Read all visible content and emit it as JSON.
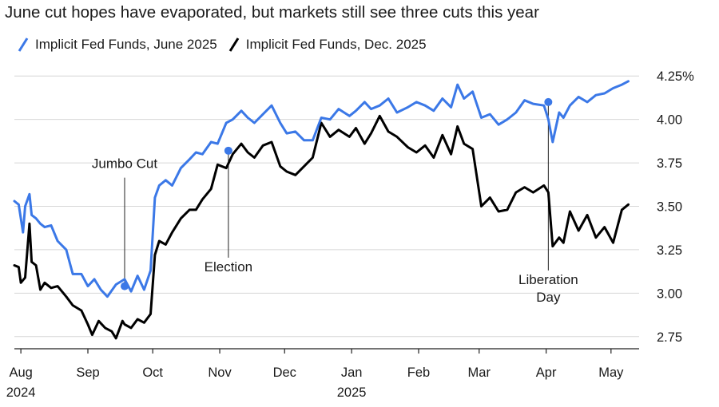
{
  "title": "June cut hopes have evaporated, but markets still see three cuts this year",
  "colors": {
    "june": "#3b78e7",
    "dec": "#000000",
    "grid": "#d6d6d6",
    "axis": "#222222"
  },
  "chart_data": {
    "type": "line",
    "x_axis": {
      "range": [
        "2024-07-29",
        "2025-05-14"
      ],
      "ticks": [
        {
          "date": "2024-08-01",
          "label": "Aug",
          "year": "2024"
        },
        {
          "date": "2024-09-01",
          "label": "Sep",
          "year": ""
        },
        {
          "date": "2024-10-01",
          "label": "Oct",
          "year": ""
        },
        {
          "date": "2024-11-01",
          "label": "Nov",
          "year": ""
        },
        {
          "date": "2024-12-01",
          "label": "Dec",
          "year": ""
        },
        {
          "date": "2025-01-01",
          "label": "Jan",
          "year": "2025"
        },
        {
          "date": "2025-02-01",
          "label": "Feb",
          "year": ""
        },
        {
          "date": "2025-03-01",
          "label": "Mar",
          "year": ""
        },
        {
          "date": "2025-04-01",
          "label": "Apr",
          "year": ""
        },
        {
          "date": "2025-05-01",
          "label": "May",
          "year": ""
        }
      ]
    },
    "y_axis": {
      "range": [
        2.68,
        4.32
      ],
      "ticks": [
        {
          "value": 4.25,
          "label": "4.25%"
        },
        {
          "value": 4.0,
          "label": "4.00"
        },
        {
          "value": 3.75,
          "label": "3.75"
        },
        {
          "value": 3.5,
          "label": "3.50"
        },
        {
          "value": 3.25,
          "label": "3.25"
        },
        {
          "value": 3.0,
          "label": "3.00"
        },
        {
          "value": 2.75,
          "label": "2.75"
        }
      ],
      "grid": true
    },
    "series": [
      {
        "name": "Implicit Fed Funds, June 2025",
        "color": "#3b78e7",
        "x": [
          "2024-07-29",
          "2024-07-31",
          "2024-08-02",
          "2024-08-03",
          "2024-08-05",
          "2024-08-06",
          "2024-08-08",
          "2024-08-10",
          "2024-08-12",
          "2024-08-15",
          "2024-08-18",
          "2024-08-22",
          "2024-08-25",
          "2024-08-29",
          "2024-09-01",
          "2024-09-04",
          "2024-09-07",
          "2024-09-10",
          "2024-09-14",
          "2024-09-18",
          "2024-09-21",
          "2024-09-24",
          "2024-09-27",
          "2024-09-30",
          "2024-10-02",
          "2024-10-04",
          "2024-10-07",
          "2024-10-10",
          "2024-10-14",
          "2024-10-18",
          "2024-10-21",
          "2024-10-24",
          "2024-10-28",
          "2024-10-31",
          "2024-11-04",
          "2024-11-07",
          "2024-11-11",
          "2024-11-14",
          "2024-11-17",
          "2024-11-21",
          "2024-11-25",
          "2024-11-29",
          "2024-12-02",
          "2024-12-06",
          "2024-12-10",
          "2024-12-14",
          "2024-12-18",
          "2024-12-22",
          "2024-12-26",
          "2024-12-31",
          "2025-01-03",
          "2025-01-07",
          "2025-01-10",
          "2025-01-14",
          "2025-01-18",
          "2025-01-22",
          "2025-01-27",
          "2025-01-31",
          "2025-02-04",
          "2025-02-08",
          "2025-02-12",
          "2025-02-16",
          "2025-02-19",
          "2025-02-22",
          "2025-02-26",
          "2025-03-02",
          "2025-03-06",
          "2025-03-10",
          "2025-03-14",
          "2025-03-18",
          "2025-03-22",
          "2025-03-26",
          "2025-03-31",
          "2025-04-02",
          "2025-04-04",
          "2025-04-07",
          "2025-04-09",
          "2025-04-12",
          "2025-04-16",
          "2025-04-20",
          "2025-04-24",
          "2025-04-28",
          "2025-05-02",
          "2025-05-06",
          "2025-05-09"
        ],
        "y": [
          3.53,
          3.51,
          3.35,
          3.5,
          3.57,
          3.45,
          3.43,
          3.4,
          3.38,
          3.39,
          3.3,
          3.25,
          3.11,
          3.11,
          3.04,
          3.08,
          3.02,
          2.98,
          3.05,
          3.08,
          3.01,
          3.1,
          3.02,
          3.13,
          3.55,
          3.62,
          3.65,
          3.62,
          3.72,
          3.77,
          3.81,
          3.8,
          3.87,
          3.86,
          3.98,
          4.0,
          4.05,
          4.01,
          3.98,
          4.03,
          4.08,
          3.98,
          3.92,
          3.93,
          3.88,
          3.88,
          4.01,
          4.0,
          4.06,
          4.02,
          4.05,
          4.1,
          4.06,
          4.08,
          4.12,
          4.04,
          4.07,
          4.1,
          4.08,
          4.05,
          4.12,
          4.07,
          4.2,
          4.12,
          4.16,
          4.01,
          4.03,
          3.97,
          4.0,
          4.04,
          4.11,
          4.09,
          4.08,
          4.0,
          3.87,
          4.04,
          4.01,
          4.08,
          4.13,
          4.1,
          4.14,
          4.15,
          4.18,
          4.2,
          4.22
        ]
      },
      {
        "name": "Implicit Fed Funds, Dec. 2025",
        "color": "#000000",
        "x": [
          "2024-07-29",
          "2024-07-31",
          "2024-08-01",
          "2024-08-03",
          "2024-08-05",
          "2024-08-06",
          "2024-08-08",
          "2024-08-10",
          "2024-08-12",
          "2024-08-15",
          "2024-08-18",
          "2024-08-22",
          "2024-08-25",
          "2024-08-29",
          "2024-09-01",
          "2024-09-03",
          "2024-09-06",
          "2024-09-09",
          "2024-09-12",
          "2024-09-14",
          "2024-09-17",
          "2024-09-18",
          "2024-09-21",
          "2024-09-24",
          "2024-09-27",
          "2024-09-30",
          "2024-10-02",
          "2024-10-04",
          "2024-10-07",
          "2024-10-10",
          "2024-10-14",
          "2024-10-18",
          "2024-10-21",
          "2024-10-24",
          "2024-10-28",
          "2024-10-31",
          "2024-11-04",
          "2024-11-07",
          "2024-11-11",
          "2024-11-14",
          "2024-11-17",
          "2024-11-21",
          "2024-11-25",
          "2024-11-29",
          "2024-12-02",
          "2024-12-06",
          "2024-12-10",
          "2024-12-14",
          "2024-12-18",
          "2024-12-22",
          "2024-12-26",
          "2024-12-31",
          "2025-01-03",
          "2025-01-07",
          "2025-01-10",
          "2025-01-14",
          "2025-01-18",
          "2025-01-22",
          "2025-01-27",
          "2025-01-31",
          "2025-02-04",
          "2025-02-08",
          "2025-02-12",
          "2025-02-16",
          "2025-02-19",
          "2025-02-22",
          "2025-02-26",
          "2025-03-02",
          "2025-03-06",
          "2025-03-10",
          "2025-03-14",
          "2025-03-18",
          "2025-03-22",
          "2025-03-26",
          "2025-03-31",
          "2025-04-02",
          "2025-04-04",
          "2025-04-07",
          "2025-04-09",
          "2025-04-12",
          "2025-04-16",
          "2025-04-20",
          "2025-04-24",
          "2025-04-28",
          "2025-05-02",
          "2025-05-06",
          "2025-05-09"
        ],
        "y": [
          3.16,
          3.15,
          3.06,
          3.09,
          3.4,
          3.18,
          3.16,
          3.02,
          3.06,
          3.03,
          3.04,
          2.98,
          2.93,
          2.9,
          2.82,
          2.76,
          2.84,
          2.8,
          2.78,
          2.74,
          2.84,
          2.82,
          2.8,
          2.85,
          2.83,
          2.88,
          3.22,
          3.3,
          3.28,
          3.35,
          3.43,
          3.48,
          3.48,
          3.54,
          3.6,
          3.74,
          3.72,
          3.8,
          3.86,
          3.81,
          3.78,
          3.85,
          3.87,
          3.73,
          3.7,
          3.68,
          3.73,
          3.78,
          3.98,
          3.9,
          3.94,
          3.9,
          3.95,
          3.86,
          3.92,
          4.02,
          3.93,
          3.9,
          3.84,
          3.81,
          3.85,
          3.78,
          3.91,
          3.8,
          3.96,
          3.86,
          3.83,
          3.5,
          3.55,
          3.47,
          3.48,
          3.58,
          3.61,
          3.58,
          3.62,
          3.58,
          3.27,
          3.32,
          3.29,
          3.47,
          3.36,
          3.45,
          3.32,
          3.38,
          3.29,
          3.48,
          3.51
        ]
      }
    ],
    "annotations": [
      {
        "label": "Jumbo Cut",
        "date": "2024-09-18",
        "series": 0,
        "y": 3.04,
        "lines": [
          "Jumbo Cut"
        ],
        "placement": "above"
      },
      {
        "label": "Election",
        "date": "2024-11-05",
        "series": 0,
        "y": 3.82,
        "lines": [
          "Election"
        ],
        "placement": "below"
      },
      {
        "label": "Liberation Day",
        "date": "2025-04-02",
        "series": 0,
        "y": 4.1,
        "lines": [
          "Liberation",
          "Day"
        ],
        "placement": "below"
      }
    ],
    "legend_position": "top-left"
  }
}
